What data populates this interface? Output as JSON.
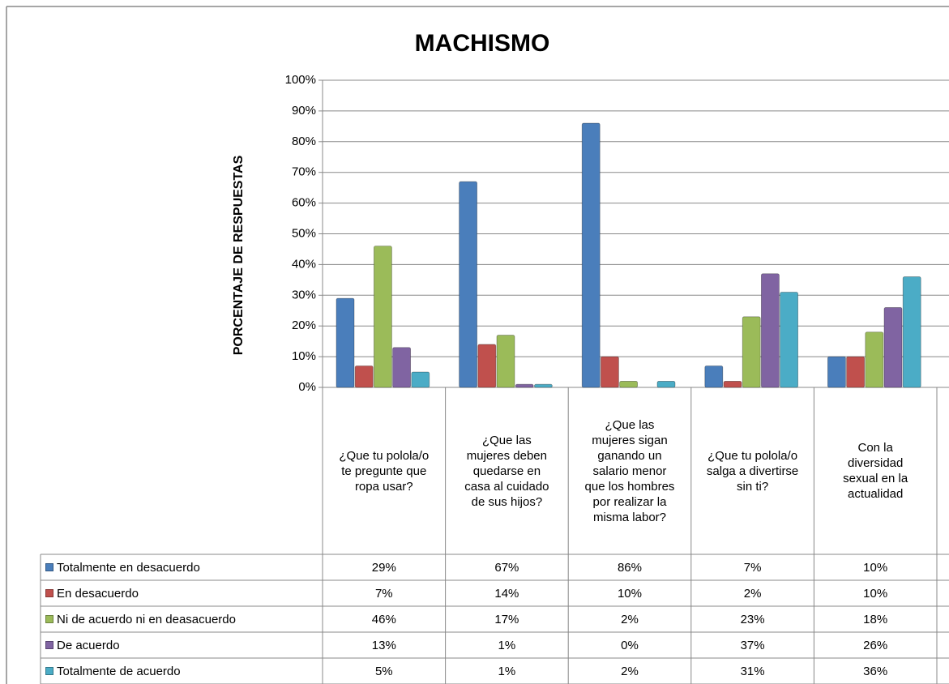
{
  "chart_data": {
    "type": "bar",
    "title": "MACHISMO",
    "y_label": "PORCENTAJE DE RESPUESTAS",
    "categories": [
      "¿Que tu polola/o te pregunte que ropa usar?",
      "¿Que las mujeres deben quedarse en casa al cuidado de sus hijos?",
      "¿Que las mujeres sigan ganando un salario menor que los hombres por realizar la misma labor?",
      "¿Que tu polola/o salga a divertirse sin ti?",
      "Con la diversidad sexual en la actualidad"
    ],
    "series": [
      {
        "name": "Totalmente en desacuerdo",
        "color": "#4a7ebb",
        "values": [
          29,
          67,
          86,
          7,
          10
        ],
        "value_labels": [
          "29%",
          "67%",
          "86%",
          "7%",
          "10%"
        ]
      },
      {
        "name": "En desacuerdo",
        "color": "#c0504d",
        "values": [
          7,
          14,
          10,
          2,
          10
        ],
        "value_labels": [
          "7%",
          "14%",
          "10%",
          "2%",
          "10%"
        ]
      },
      {
        "name": "Ni de acuerdo ni en deasacuerdo",
        "color": "#9bbb59",
        "values": [
          46,
          17,
          2,
          23,
          18
        ],
        "value_labels": [
          "46%",
          "17%",
          "2%",
          "23%",
          "18%"
        ]
      },
      {
        "name": "De acuerdo",
        "color": "#8064a2",
        "values": [
          13,
          1,
          0,
          37,
          26
        ],
        "value_labels": [
          "13%",
          "1%",
          "0%",
          "37%",
          "26%"
        ]
      },
      {
        "name": "Totalmente de acuerdo",
        "color": "#4bacc6",
        "values": [
          5,
          1,
          2,
          31,
          36
        ],
        "value_labels": [
          "5%",
          "1%",
          "2%",
          "31%",
          "36%"
        ]
      }
    ],
    "ylim": [
      0,
      100
    ],
    "yticks": [
      {
        "value": 0,
        "label": "0%"
      },
      {
        "value": 10,
        "label": "10%"
      },
      {
        "value": 20,
        "label": "20%"
      },
      {
        "value": 30,
        "label": "30%"
      },
      {
        "value": 40,
        "label": "40%"
      },
      {
        "value": 50,
        "label": "50%"
      },
      {
        "value": 60,
        "label": "60%"
      },
      {
        "value": 70,
        "label": "70%"
      },
      {
        "value": 80,
        "label": "80%"
      },
      {
        "value": 90,
        "label": "90%"
      },
      {
        "value": 100,
        "label": "100%"
      }
    ],
    "grid": true
  }
}
